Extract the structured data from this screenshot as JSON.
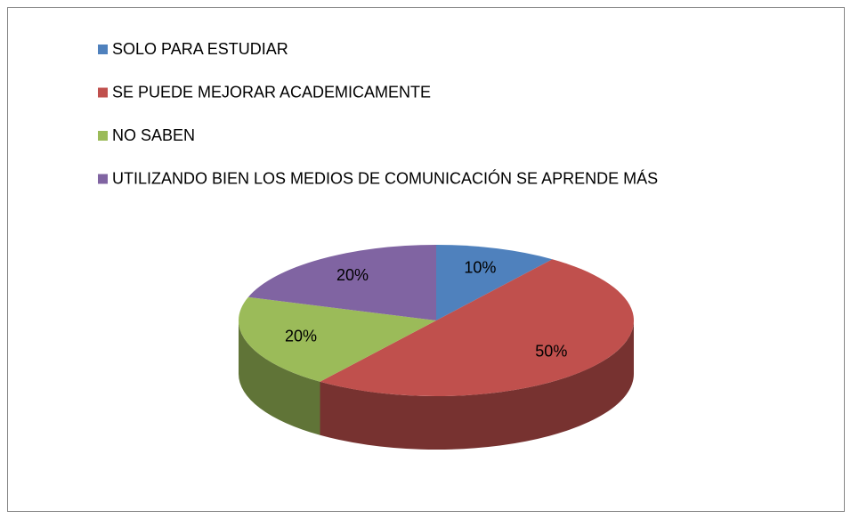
{
  "chart_data": {
    "type": "pie",
    "categories": [
      "SOLO PARA ESTUDIAR",
      "SE PUEDE MEJORAR ACADEMICAMENTE",
      "NO SABEN",
      "UTILIZANDO BIEN LOS MEDIOS DE COMUNICACIÓN SE APRENDE MÁS"
    ],
    "values": [
      10,
      50,
      20,
      20
    ],
    "value_labels": [
      "10%",
      "50%",
      "20%",
      "20%"
    ],
    "colors": [
      "#4f81bd",
      "#c0504d",
      "#9bbb59",
      "#8064a2"
    ],
    "legend": "top-left"
  }
}
